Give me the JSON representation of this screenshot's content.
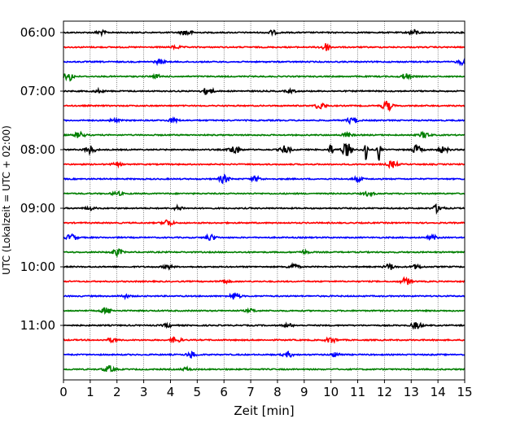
{
  "chart_data": {
    "type": "line",
    "xlabel": "Zeit  [min]",
    "ylabel": "UTC (Lokalzeit = UTC + 02:00)",
    "xlim": [
      0,
      15
    ],
    "x_ticks": [
      0,
      1,
      2,
      3,
      4,
      5,
      6,
      7,
      8,
      9,
      10,
      11,
      12,
      13,
      14,
      15
    ],
    "x_grid": true,
    "y_tick_labels": [
      "06:00",
      "07:00",
      "08:00",
      "09:00",
      "10:00",
      "11:00"
    ],
    "traces_start": "06:00",
    "trace_interval_min": 15,
    "trace_colors": [
      "#000000",
      "#ff0000",
      "#0000ff",
      "#007f00"
    ],
    "traces": [
      {
        "start": "06:00",
        "color": "#000000",
        "events": [
          [
            4.6,
            0.35
          ],
          [
            13.1,
            0.3
          ],
          [
            1.4,
            0.2
          ],
          [
            7.8,
            0.2
          ]
        ]
      },
      {
        "start": "06:15",
        "color": "#ff0000",
        "events": [
          [
            9.8,
            0.4
          ],
          [
            4.2,
            0.15
          ]
        ]
      },
      {
        "start": "06:30",
        "color": "#0000ff",
        "events": [
          [
            3.6,
            0.2
          ],
          [
            14.9,
            0.25
          ]
        ]
      },
      {
        "start": "06:45",
        "color": "#007f00",
        "events": [
          [
            0.2,
            0.45
          ],
          [
            12.8,
            0.3
          ],
          [
            3.5,
            0.15
          ]
        ]
      },
      {
        "start": "07:00",
        "color": "#000000",
        "events": [
          [
            5.4,
            0.4
          ],
          [
            1.3,
            0.15
          ],
          [
            8.5,
            0.15
          ]
        ]
      },
      {
        "start": "07:15",
        "color": "#ff0000",
        "events": [
          [
            9.6,
            0.35
          ],
          [
            12.1,
            0.5
          ]
        ]
      },
      {
        "start": "07:30",
        "color": "#0000ff",
        "events": [
          [
            10.8,
            0.35
          ],
          [
            4.1,
            0.2
          ],
          [
            1.9,
            0.15
          ]
        ]
      },
      {
        "start": "07:45",
        "color": "#007f00",
        "events": [
          [
            0.6,
            0.3
          ],
          [
            13.5,
            0.3
          ],
          [
            10.6,
            0.2
          ]
        ]
      },
      {
        "start": "08:00",
        "color": "#000000",
        "events": [
          [
            1.0,
            0.4
          ],
          [
            6.4,
            0.5
          ],
          [
            8.3,
            0.4
          ],
          [
            10.0,
            0.8
          ],
          [
            10.6,
            0.7
          ],
          [
            11.3,
            1.6
          ],
          [
            11.8,
            1.2
          ],
          [
            13.2,
            0.4
          ],
          [
            14.2,
            0.3
          ]
        ]
      },
      {
        "start": "08:15",
        "color": "#ff0000",
        "events": [
          [
            12.3,
            0.35
          ],
          [
            2.0,
            0.15
          ]
        ]
      },
      {
        "start": "08:30",
        "color": "#0000ff",
        "events": [
          [
            6.0,
            0.4
          ],
          [
            7.2,
            0.25
          ],
          [
            11.0,
            0.2
          ]
        ]
      },
      {
        "start": "08:45",
        "color": "#007f00",
        "events": [
          [
            2.0,
            0.2
          ],
          [
            11.4,
            0.2
          ]
        ]
      },
      {
        "start": "09:00",
        "color": "#000000",
        "events": [
          [
            14.0,
            0.4
          ],
          [
            4.3,
            0.2
          ],
          [
            1.0,
            0.15
          ]
        ]
      },
      {
        "start": "09:15",
        "color": "#ff0000",
        "events": [
          [
            3.9,
            0.35
          ]
        ]
      },
      {
        "start": "09:30",
        "color": "#0000ff",
        "events": [
          [
            0.3,
            0.35
          ],
          [
            5.5,
            0.3
          ],
          [
            13.8,
            0.2
          ]
        ]
      },
      {
        "start": "09:45",
        "color": "#007f00",
        "events": [
          [
            2.0,
            0.35
          ],
          [
            9.0,
            0.15
          ]
        ]
      },
      {
        "start": "10:00",
        "color": "#000000",
        "events": [
          [
            8.6,
            0.3
          ],
          [
            12.2,
            0.3
          ],
          [
            13.2,
            0.2
          ],
          [
            3.9,
            0.2
          ]
        ]
      },
      {
        "start": "10:15",
        "color": "#ff0000",
        "events": [
          [
            12.8,
            0.35
          ],
          [
            6.0,
            0.15
          ]
        ]
      },
      {
        "start": "10:30",
        "color": "#0000ff",
        "events": [
          [
            6.4,
            0.35
          ],
          [
            2.3,
            0.15
          ]
        ]
      },
      {
        "start": "10:45",
        "color": "#007f00",
        "events": [
          [
            1.6,
            0.3
          ],
          [
            7.0,
            0.15
          ]
        ]
      },
      {
        "start": "11:00",
        "color": "#000000",
        "events": [
          [
            13.2,
            0.35
          ],
          [
            3.9,
            0.15
          ],
          [
            8.4,
            0.15
          ]
        ]
      },
      {
        "start": "11:15",
        "color": "#ff0000",
        "events": [
          [
            1.8,
            0.2
          ],
          [
            4.2,
            0.3
          ],
          [
            10.0,
            0.3
          ]
        ]
      },
      {
        "start": "11:30",
        "color": "#0000ff",
        "events": [
          [
            4.8,
            0.3
          ],
          [
            8.4,
            0.25
          ],
          [
            10.2,
            0.2
          ]
        ]
      },
      {
        "start": "11:45",
        "color": "#007f00",
        "events": [
          [
            1.7,
            0.35
          ],
          [
            4.6,
            0.15
          ]
        ]
      }
    ]
  }
}
